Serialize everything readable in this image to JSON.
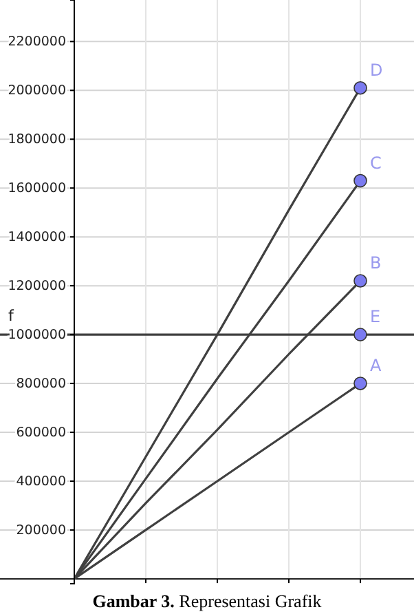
{
  "chart_data": {
    "type": "line",
    "grid": true,
    "ylim": [
      -20000,
      2370000
    ],
    "categories": [
      null,
      null,
      null,
      null,
      null
    ],
    "yticks": [
      200000,
      400000,
      600000,
      800000,
      1000000,
      1200000,
      1400000,
      1600000,
      1800000,
      2000000,
      2200000
    ],
    "series": [
      {
        "color": "#404040",
        "values": [
          0,
          500000,
          1000000,
          1510000,
          2010000
        ]
      },
      {
        "color": "#404040",
        "values": [
          0,
          410000,
          820000,
          1220000,
          1630000
        ]
      },
      {
        "color": "#404040",
        "values": [
          0,
          310000,
          610000,
          920000,
          1220000
        ]
      },
      {
        "color": "#404040",
        "values": [
          0,
          200000,
          400000,
          600000,
          800000
        ]
      },
      {
        "type": "scatter",
        "name": "A",
        "color": "#7b7bf0",
        "marker": "circle",
        "values": [
          null,
          null,
          null,
          null,
          800000
        ]
      },
      {
        "type": "scatter",
        "name": "B",
        "color": "#7b7bf0",
        "marker": "circle",
        "values": [
          null,
          null,
          null,
          null,
          1220000
        ]
      },
      {
        "type": "scatter",
        "name": "C",
        "color": "#7b7bf0",
        "marker": "circle",
        "values": [
          null,
          null,
          null,
          null,
          1630000
        ]
      },
      {
        "type": "scatter",
        "name": "D",
        "color": "#7b7bf0",
        "marker": "circle",
        "values": [
          null,
          null,
          null,
          null,
          2010000
        ]
      },
      {
        "type": "scatter",
        "name": "E",
        "color": "#7b7bf0",
        "marker": "circle",
        "values": [
          null,
          null,
          null,
          null,
          1000000
        ]
      }
    ],
    "ref_lines": [
      {
        "axis": "y",
        "value": 1000000,
        "label": "f",
        "color": "#404040"
      }
    ],
    "annotations": [
      "Gambar 3.",
      "Representasi Grafik"
    ]
  }
}
